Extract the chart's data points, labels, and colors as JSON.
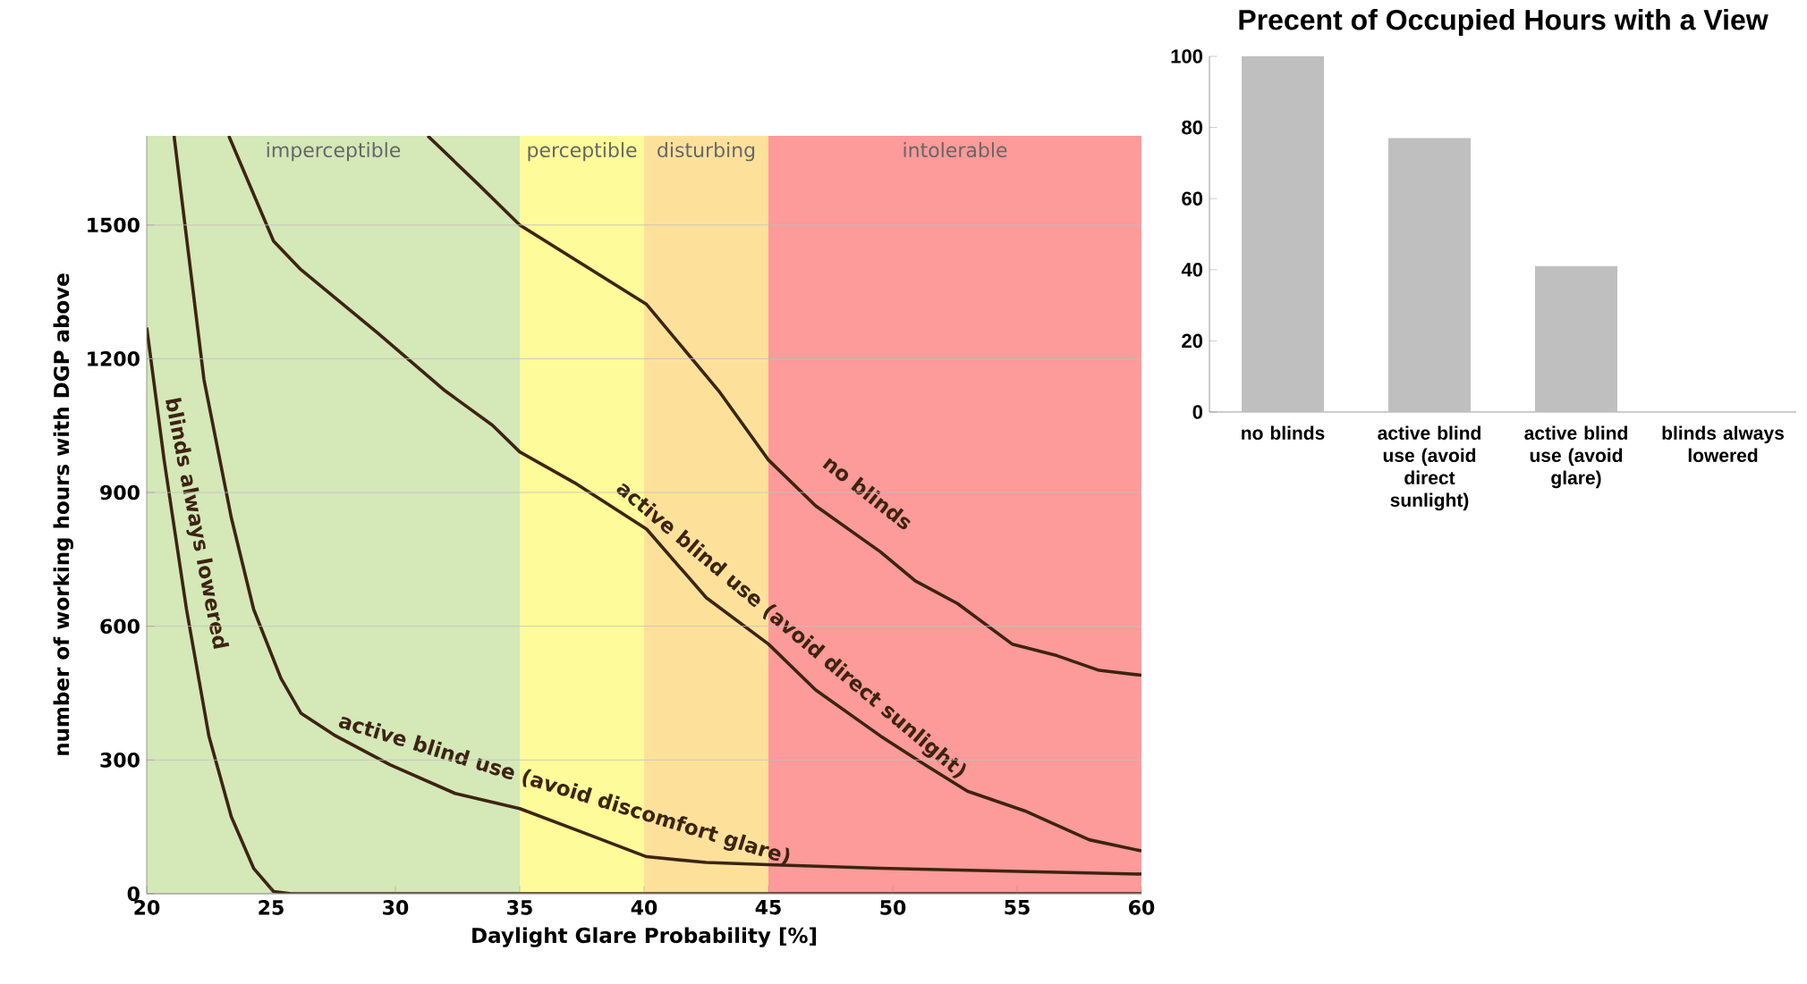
{
  "chart_data": [
    {
      "type": "line",
      "xlabel": "Daylight Glare Probability [%]",
      "ylabel": "number of working hours with DGP above",
      "xlim": [
        20,
        60
      ],
      "ylim": [
        0,
        1700
      ],
      "xticks": [
        20,
        25,
        30,
        35,
        40,
        45,
        50,
        55,
        60
      ],
      "yticks": [
        0,
        300,
        600,
        900,
        1200,
        1500
      ],
      "grid": "y",
      "bands": [
        {
          "axis": "x",
          "from": 20,
          "to": 35,
          "label": "imperceptible",
          "color": "#d4e8b8"
        },
        {
          "axis": "x",
          "from": 35,
          "to": 40,
          "label": "perceptible",
          "color": "#fdfb9a"
        },
        {
          "axis": "x",
          "from": 40,
          "to": 45,
          "label": "disturbing",
          "color": "#fde19b"
        },
        {
          "axis": "x",
          "from": 45,
          "to": 60,
          "label": "intolerable",
          "color": "#fd9a9a"
        }
      ],
      "series": [
        {
          "name": "no blinds",
          "color": "#3d2410",
          "x": [
            31.3,
            33.3,
            35,
            40.1,
            43,
            45,
            46.9,
            49.5,
            50.9,
            52.6,
            54.8,
            56.6,
            58.3,
            60
          ],
          "values": [
            1700,
            1593,
            1500,
            1322,
            1128,
            973,
            870,
            767,
            702,
            651,
            560,
            534,
            501,
            490
          ]
        },
        {
          "name": "active blind use (avoid direct sunlight)",
          "color": "#3d2410",
          "x": [
            23.3,
            25.1,
            26.2,
            29.3,
            32,
            33.9,
            35,
            37.2,
            40.1,
            42.5,
            45,
            46.9,
            49.5,
            51.3,
            53,
            55.3,
            57.9,
            60
          ],
          "values": [
            1700,
            1464,
            1400,
            1257,
            1128,
            1051,
            991,
            922,
            818,
            664,
            560,
            457,
            354,
            289,
            230,
            186,
            121,
            96
          ]
        },
        {
          "name": "active blind use (avoid discomfort glare)",
          "color": "#3d2410",
          "x": [
            21.1,
            22.3,
            23.4,
            24.3,
            25.4,
            26.2,
            27.6,
            29.8,
            32.4,
            35,
            37.7,
            40.1,
            42.5,
            45,
            49.5,
            60
          ],
          "values": [
            1700,
            1154,
            844,
            638,
            483,
            405,
            354,
            289,
            225,
            191,
            134,
            83,
            70,
            65,
            57,
            44
          ]
        },
        {
          "name": "blinds always lowered",
          "color": "#3d2410",
          "x": [
            20,
            20.7,
            21.6,
            22.5,
            23.4,
            24.3,
            25.1,
            25.8,
            60
          ],
          "values": [
            1270,
            973,
            638,
            354,
            173,
            57,
            5,
            0,
            0
          ]
        }
      ]
    },
    {
      "type": "bar",
      "title": "Precent of Occupied Hours with a View",
      "categories": [
        "no blinds",
        "active blind use (avoid direct sunlight)",
        "active blind use (avoid glare)",
        "blinds always lowered"
      ],
      "values": [
        100,
        77,
        41,
        0
      ],
      "color": "#bfbfbf",
      "ylim": [
        0,
        100
      ],
      "yticks": [
        0,
        20,
        40,
        60,
        80,
        100
      ]
    }
  ]
}
